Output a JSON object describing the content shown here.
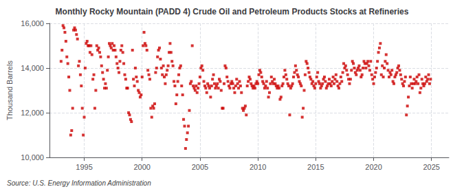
{
  "chart_data": {
    "type": "scatter",
    "title": "Monthly Rocky Mountain (PADD 4) Crude Oil and Petroleum Products Stocks at Refineries",
    "ylabel": "Thousand Barrels",
    "annotations": [
      "Source: U.S. Energy Information Administration"
    ],
    "color": "#cc0000",
    "marker": "square",
    "grid": true,
    "xlim": [
      1992.0,
      2026.5
    ],
    "xticks": [
      1995,
      2000,
      2005,
      2010,
      2015,
      2020,
      2025
    ],
    "ylim": [
      10000,
      16000
    ],
    "yticks": [
      {
        "value": 10000,
        "label": "10,000"
      },
      {
        "value": 12000,
        "label": "12,000"
      },
      {
        "value": 14000,
        "label": "14,000"
      },
      {
        "value": 16000,
        "label": "16,000"
      }
    ],
    "x": [
      1993.0,
      1993.083,
      1993.167,
      1993.25,
      1993.333,
      1993.417,
      1993.5,
      1993.583,
      1993.667,
      1993.75,
      1993.833,
      1993.917,
      1994.0,
      1994.083,
      1994.167,
      1994.25,
      1994.333,
      1994.417,
      1994.5,
      1994.583,
      1994.667,
      1994.75,
      1994.833,
      1994.917,
      1995.0,
      1995.083,
      1995.167,
      1995.25,
      1995.333,
      1995.417,
      1995.5,
      1995.583,
      1995.667,
      1995.75,
      1995.833,
      1995.917,
      1996.0,
      1996.083,
      1996.167,
      1996.25,
      1996.333,
      1996.417,
      1996.5,
      1996.583,
      1996.667,
      1996.75,
      1996.833,
      1996.917,
      1997.0,
      1997.083,
      1997.167,
      1997.25,
      1997.333,
      1997.417,
      1997.5,
      1997.583,
      1997.667,
      1997.75,
      1997.833,
      1997.917,
      1998.0,
      1998.083,
      1998.167,
      1998.25,
      1998.333,
      1998.417,
      1998.5,
      1998.583,
      1998.667,
      1998.75,
      1998.833,
      1998.917,
      1999.0,
      1999.083,
      1999.167,
      1999.25,
      1999.333,
      1999.417,
      1999.5,
      1999.583,
      1999.667,
      1999.75,
      1999.833,
      1999.917,
      2000.0,
      2000.083,
      2000.167,
      2000.25,
      2000.333,
      2000.417,
      2000.5,
      2000.583,
      2000.667,
      2000.75,
      2000.833,
      2000.917,
      2001.0,
      2001.083,
      2001.167,
      2001.25,
      2001.333,
      2001.417,
      2001.5,
      2001.583,
      2001.667,
      2001.75,
      2001.833,
      2001.917,
      2002.0,
      2002.083,
      2002.167,
      2002.25,
      2002.333,
      2002.417,
      2002.5,
      2002.583,
      2002.667,
      2002.75,
      2002.833,
      2002.917,
      2003.0,
      2003.083,
      2003.167,
      2003.25,
      2003.333,
      2003.417,
      2003.5,
      2003.583,
      2003.667,
      2003.75,
      2003.833,
      2003.917,
      2004.0,
      2004.083,
      2004.167,
      2004.25,
      2004.333,
      2004.417,
      2004.5,
      2004.583,
      2004.667,
      2004.75,
      2004.833,
      2004.917,
      2005.0,
      2005.083,
      2005.167,
      2005.25,
      2005.333,
      2005.417,
      2005.5,
      2005.583,
      2005.667,
      2005.75,
      2005.833,
      2005.917,
      2006.0,
      2006.083,
      2006.167,
      2006.25,
      2006.333,
      2006.417,
      2006.5,
      2006.583,
      2006.667,
      2006.75,
      2006.833,
      2006.917,
      2007.0,
      2007.083,
      2007.167,
      2007.25,
      2007.333,
      2007.417,
      2007.5,
      2007.583,
      2007.667,
      2007.75,
      2007.833,
      2007.917,
      2008.0,
      2008.083,
      2008.167,
      2008.25,
      2008.333,
      2008.417,
      2008.5,
      2008.583,
      2008.667,
      2008.75,
      2008.833,
      2008.917,
      2009.0,
      2009.083,
      2009.167,
      2009.25,
      2009.333,
      2009.417,
      2009.5,
      2009.583,
      2009.667,
      2009.75,
      2009.833,
      2009.917,
      2010.0,
      2010.083,
      2010.167,
      2010.25,
      2010.333,
      2010.417,
      2010.5,
      2010.583,
      2010.667,
      2010.75,
      2010.833,
      2010.917,
      2011.0,
      2011.083,
      2011.167,
      2011.25,
      2011.333,
      2011.417,
      2011.5,
      2011.583,
      2011.667,
      2011.75,
      2011.833,
      2011.917,
      2012.0,
      2012.083,
      2012.167,
      2012.25,
      2012.333,
      2012.417,
      2012.5,
      2012.583,
      2012.667,
      2012.75,
      2012.833,
      2012.917,
      2013.0,
      2013.083,
      2013.167,
      2013.25,
      2013.333,
      2013.417,
      2013.5,
      2013.583,
      2013.667,
      2013.75,
      2013.833,
      2013.917,
      2014.0,
      2014.083,
      2014.167,
      2014.25,
      2014.333,
      2014.417,
      2014.5,
      2014.583,
      2014.667,
      2014.75,
      2014.833,
      2014.917,
      2015.0,
      2015.083,
      2015.167,
      2015.25,
      2015.333,
      2015.417,
      2015.5,
      2015.583,
      2015.667,
      2015.75,
      2015.833,
      2015.917,
      2016.0,
      2016.083,
      2016.167,
      2016.25,
      2016.333,
      2016.417,
      2016.5,
      2016.583,
      2016.667,
      2016.75,
      2016.833,
      2016.917,
      2017.0,
      2017.083,
      2017.167,
      2017.25,
      2017.333,
      2017.417,
      2017.5,
      2017.583,
      2017.667,
      2017.75,
      2017.833,
      2017.917,
      2018.0,
      2018.083,
      2018.167,
      2018.25,
      2018.333,
      2018.417,
      2018.5,
      2018.583,
      2018.667,
      2018.75,
      2018.833,
      2018.917,
      2019.0,
      2019.083,
      2019.167,
      2019.25,
      2019.333,
      2019.417,
      2019.5,
      2019.583,
      2019.667,
      2019.75,
      2019.833,
      2019.917,
      2020.0,
      2020.083,
      2020.167,
      2020.25,
      2020.333,
      2020.417,
      2020.5,
      2020.583,
      2020.667,
      2020.75,
      2020.833,
      2020.917,
      2021.0,
      2021.083,
      2021.167,
      2021.25,
      2021.333,
      2021.417,
      2021.5,
      2021.583,
      2021.667,
      2021.75,
      2021.833,
      2021.917,
      2022.0,
      2022.083,
      2022.167,
      2022.25,
      2022.333,
      2022.417,
      2022.5,
      2022.583,
      2022.667,
      2022.75,
      2022.833,
      2022.917,
      2023.0,
      2023.083,
      2023.167,
      2023.25,
      2023.333,
      2023.417,
      2023.5,
      2023.583,
      2023.667,
      2023.75,
      2023.833,
      2023.917,
      2024.0,
      2024.083,
      2024.167,
      2024.25,
      2024.333,
      2024.417,
      2024.5,
      2024.583,
      2024.667,
      2024.75,
      2024.833,
      2024.917
    ],
    "values": [
      14300,
      14800,
      15900,
      15800,
      15600,
      15200,
      14500,
      14200,
      13600,
      13000,
      11000,
      11200,
      12200,
      15700,
      15800,
      15700,
      15500,
      15300,
      14100,
      14300,
      13700,
      13200,
      12200,
      11000,
      11800,
      14000,
      15100,
      15200,
      15000,
      15000,
      14700,
      15000,
      14600,
      13500,
      13700,
      12200,
      13000,
      15000,
      14800,
      14900,
      14700,
      14500,
      14100,
      13800,
      13500,
      13100,
      13300,
      13100,
      13900,
      14500,
      15100,
      15000,
      14900,
      15100,
      14800,
      15000,
      14800,
      14500,
      14200,
      14000,
      13800,
      14300,
      14800,
      15000,
      14700,
      14200,
      13700,
      13500,
      13100,
      13100,
      12000,
      11900,
      11700,
      11600,
      14800,
      13500,
      13200,
      14000,
      13600,
      13400,
      13000,
      12900,
      12700,
      12800,
      13600,
      15000,
      15600,
      15100,
      15000,
      14800,
      13900,
      13700,
      13500,
      12200,
      11800,
      12300,
      12200,
      12400,
      13800,
      14000,
      14500,
      14800,
      14900,
      14400,
      14000,
      13700,
      14100,
      13600,
      13300,
      13700,
      13900,
      14100,
      14700,
      15100,
      14700,
      14300,
      14100,
      13400,
      13200,
      12400,
      12800,
      13400,
      13700,
      14000,
      14100,
      13200,
      12800,
      11700,
      11400,
      10400,
      10800,
      11100,
      11400,
      12100,
      13300,
      13400,
      15000,
      13200,
      13100,
      13000,
      13200,
      12900,
      13100,
      13300,
      13600,
      14000,
      14100,
      13900,
      13400,
      13200,
      13100,
      12900,
      13300,
      13200,
      13100,
      12700,
      13200,
      13500,
      13700,
      13300,
      13100,
      13200,
      13300,
      13100,
      13500,
      13400,
      13000,
      12200,
      12200,
      13300,
      14100,
      14000,
      13600,
      13400,
      13200,
      13100,
      13300,
      13400,
      13300,
      13100,
      12900,
      13200,
      13500,
      13300,
      13100,
      13400,
      13200,
      12900,
      12200,
      12100,
      12200,
      12300,
      11900,
      13200,
      13400,
      13600,
      13500,
      13300,
      13200,
      13100,
      13200,
      13100,
      13300,
      13400,
      13300,
      13700,
      13900,
      13800,
      13600,
      13400,
      13300,
      13100,
      13200,
      13400,
      13100,
      12700,
      12900,
      13300,
      13600,
      13400,
      13300,
      13500,
      13300,
      13200,
      13100,
      13200,
      13100,
      12600,
      12700,
      13200,
      13300,
      13600,
      13900,
      13700,
      13500,
      13300,
      13200,
      11900,
      13100,
      13200,
      13300,
      13600,
      13800,
      14100,
      13900,
      13700,
      13600,
      13400,
      13300,
      13200,
      11800,
      12200,
      13000,
      13700,
      14300,
      14200,
      14000,
      13800,
      13600,
      13500,
      13300,
      13400,
      13200,
      13100,
      13300,
      13600,
      13800,
      13400,
      13300,
      13100,
      13200,
      13300,
      13500,
      13600,
      13400,
      13100,
      13200,
      13300,
      13500,
      13300,
      13200,
      13400,
      13600,
      13300,
      13500,
      13700,
      13400,
      13200,
      13100,
      13300,
      13600,
      13400,
      13800,
      14200,
      14000,
      14100,
      13900,
      13700,
      13500,
      13300,
      13500,
      13900,
      14300,
      14200,
      14000,
      13800,
      13700,
      13900,
      14000,
      14100,
      13900,
      13600,
      13700,
      14000,
      14300,
      14200,
      14000,
      14200,
      14300,
      14100,
      13900,
      14300,
      13700,
      13500,
      13300,
      13600,
      13800,
      14000,
      14300,
      14700,
      14900,
      15100,
      13700,
      14100,
      13600,
      14000,
      14300,
      14600,
      14200,
      13900,
      13600,
      13800,
      13700,
      13900,
      13400,
      13300,
      13600,
      13700,
      13800,
      14000,
      14100,
      13900,
      13700,
      13500,
      13300,
      13200,
      13400,
      13600,
      11900,
      12300,
      12700,
      13200,
      13600,
      13300,
      13100,
      13300,
      13500,
      13300,
      13400,
      13600,
      13300,
      13700,
      12900,
      13100,
      13500,
      13300,
      13200,
      13300,
      13600,
      13400,
      13500,
      13700,
      13300,
      13500
    ]
  }
}
